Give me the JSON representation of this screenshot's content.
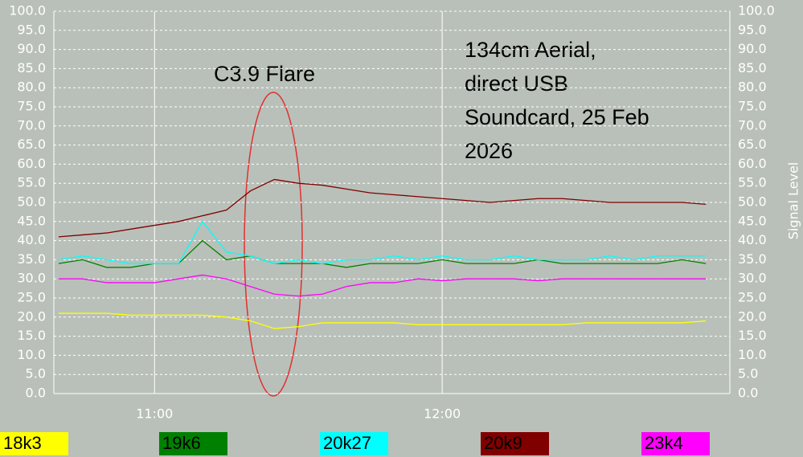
{
  "chart_data": {
    "type": "line",
    "y_label": "Signal Level",
    "annotations": [
      "C3.9 Flare",
      "134cm Aerial,",
      "direct USB",
      "Soundcard, 25 Feb",
      "2026"
    ],
    "x": [
      "10:40",
      "10:45",
      "10:50",
      "10:55",
      "11:00",
      "11:05",
      "11:10",
      "11:15",
      "11:20",
      "11:25",
      "11:30",
      "11:35",
      "11:40",
      "11:45",
      "11:50",
      "11:55",
      "12:00",
      "12:05",
      "12:10",
      "12:15",
      "12:20",
      "12:25",
      "12:30",
      "12:35",
      "12:40",
      "12:45",
      "12:50",
      "12:55"
    ],
    "xlim": [
      "10:39",
      "13:00"
    ],
    "xticks": [
      "11:00",
      "12:00"
    ],
    "ylim": [
      0,
      100
    ],
    "yticks": [
      {
        "value": 0,
        "label": "0.0"
      },
      {
        "value": 5,
        "label": "5.0"
      },
      {
        "value": 10,
        "label": "10.0"
      },
      {
        "value": 15,
        "label": "15.0"
      },
      {
        "value": 20,
        "label": "20.0"
      },
      {
        "value": 25,
        "label": "25.0"
      },
      {
        "value": 30,
        "label": "30.0"
      },
      {
        "value": 35,
        "label": "35.0"
      },
      {
        "value": 40,
        "label": "40.0"
      },
      {
        "value": 45,
        "label": "45.0"
      },
      {
        "value": 50,
        "label": "50.0"
      },
      {
        "value": 55,
        "label": "55.0"
      },
      {
        "value": 60,
        "label": "60.0"
      },
      {
        "value": 65,
        "label": "65.0"
      },
      {
        "value": 70,
        "label": "70.0"
      },
      {
        "value": 75,
        "label": "75.0"
      },
      {
        "value": 80,
        "label": "80.0"
      },
      {
        "value": 85,
        "label": "85.0"
      },
      {
        "value": 90,
        "label": "90.0"
      },
      {
        "value": 95,
        "label": "95.0"
      },
      {
        "value": 100,
        "label": "100.0"
      }
    ],
    "grid": true,
    "series": [
      {
        "name": "18k3",
        "color": "#ffff00",
        "values": [
          21,
          21,
          21,
          20.5,
          20.5,
          20.5,
          20.5,
          20,
          19,
          17,
          17.5,
          18.5,
          18.5,
          18.5,
          18.5,
          18,
          18,
          18,
          18,
          18,
          18,
          18,
          18.5,
          18.5,
          18.5,
          18.5,
          18.5,
          19
        ]
      },
      {
        "name": "19k6",
        "color": "#008000",
        "values": [
          34,
          35,
          33,
          33,
          34,
          34,
          40,
          35,
          36,
          34,
          34,
          34,
          33,
          34,
          34,
          34,
          35,
          34,
          34,
          34,
          35,
          34,
          34,
          34,
          34,
          34,
          35,
          34
        ]
      },
      {
        "name": "20k27",
        "color": "#00ffff",
        "values": [
          35,
          36,
          35,
          34,
          34,
          34,
          45,
          37,
          36,
          34,
          35,
          34,
          35,
          35,
          36,
          35,
          36,
          35,
          35,
          36,
          35,
          35,
          35,
          36,
          35,
          36,
          36,
          36
        ]
      },
      {
        "name": "20k9",
        "color": "#800000",
        "values": [
          41,
          41.5,
          42,
          43,
          44,
          45,
          46.5,
          48,
          53,
          56,
          55,
          54.5,
          53.5,
          52.5,
          52,
          51.5,
          51,
          50.5,
          50,
          50.5,
          51,
          51,
          50.5,
          50,
          50,
          50,
          50,
          49.5
        ]
      },
      {
        "name": "23k4",
        "color": "#ff00ff",
        "values": [
          30,
          30,
          29,
          29,
          29,
          30,
          31,
          30,
          28,
          26,
          25.5,
          26,
          28,
          29,
          29,
          30,
          29.5,
          30,
          30,
          30,
          29.5,
          30,
          30,
          30,
          30,
          30,
          30,
          30
        ]
      }
    ]
  }
}
